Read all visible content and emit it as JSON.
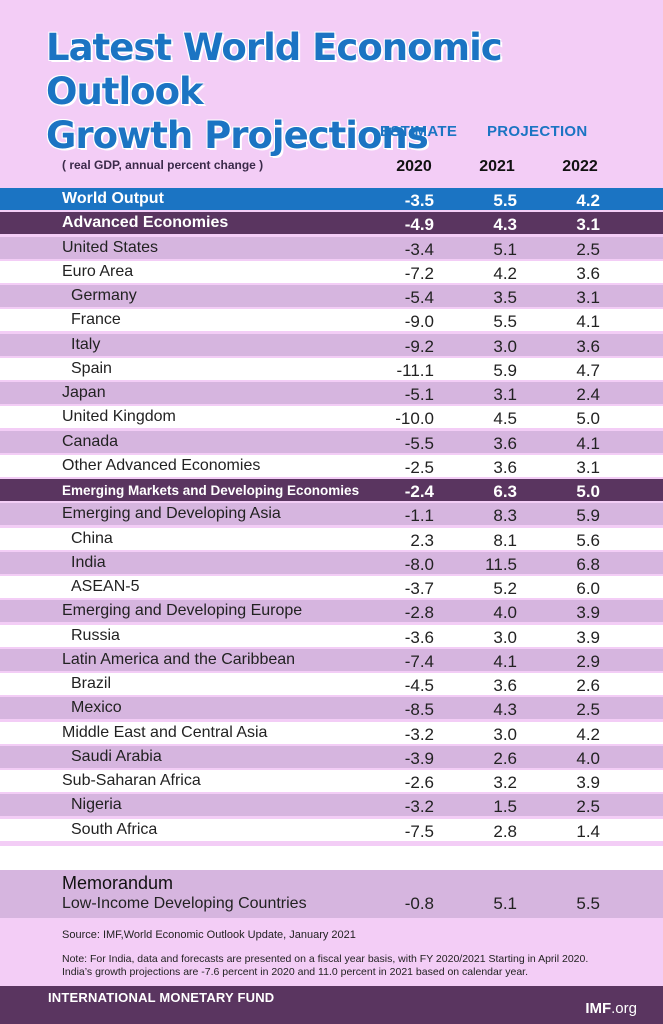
{
  "title_line1": "Latest World Economic Outlook",
  "title_line2": "Growth Projections",
  "header": {
    "estimate": "ESTIMATE",
    "projection": "PROJECTION",
    "unit_note": "( real GDP, annual percent change )",
    "years": [
      "2020",
      "2021",
      "2022"
    ]
  },
  "colors": {
    "background": "#f3cdf6",
    "title": "#1b74c3",
    "world_output_row": "#1b74c3",
    "group_row": "#5a3560",
    "stripe": "#d6b5df",
    "plain": "#ffffff",
    "footer": "#5a3560"
  },
  "chart_data": {
    "type": "table",
    "columns": [
      "",
      "2020",
      "2021",
      "2022"
    ],
    "rows": [
      {
        "label": "World Output",
        "style": "world",
        "indent": 0,
        "values": [
          "-3.5",
          "5.5",
          "4.2"
        ]
      },
      {
        "label": "Advanced Economies",
        "style": "group",
        "indent": 0,
        "values": [
          "-4.9",
          "4.3",
          "3.1"
        ]
      },
      {
        "label": "United States",
        "style": "stripe",
        "indent": 0,
        "values": [
          "-3.4",
          "5.1",
          "2.5"
        ]
      },
      {
        "label": "Euro Area",
        "style": "plain",
        "indent": 0,
        "values": [
          "-7.2",
          "4.2",
          "3.6"
        ]
      },
      {
        "label": "Germany",
        "style": "stripe",
        "indent": 1,
        "values": [
          "-5.4",
          "3.5",
          "3.1"
        ]
      },
      {
        "label": "France",
        "style": "plain",
        "indent": 1,
        "values": [
          "-9.0",
          "5.5",
          "4.1"
        ]
      },
      {
        "label": "Italy",
        "style": "stripe",
        "indent": 1,
        "values": [
          "-9.2",
          "3.0",
          "3.6"
        ]
      },
      {
        "label": "Spain",
        "style": "plain",
        "indent": 1,
        "values": [
          "-11.1",
          "5.9",
          "4.7"
        ]
      },
      {
        "label": "Japan",
        "style": "stripe",
        "indent": 0,
        "values": [
          "-5.1",
          "3.1",
          "2.4"
        ]
      },
      {
        "label": "United Kingdom",
        "style": "plain",
        "indent": 0,
        "values": [
          "-10.0",
          "4.5",
          "5.0"
        ]
      },
      {
        "label": "Canada",
        "style": "stripe",
        "indent": 0,
        "values": [
          "-5.5",
          "3.6",
          "4.1"
        ]
      },
      {
        "label": "Other Advanced Economies",
        "style": "plain",
        "indent": 0,
        "values": [
          "-2.5",
          "3.6",
          "3.1"
        ]
      },
      {
        "label": "Emerging Markets and Developing Economies",
        "style": "group",
        "indent": 0,
        "values": [
          "-2.4",
          "6.3",
          "5.0"
        ]
      },
      {
        "label": "Emerging and Developing Asia",
        "style": "stripe",
        "indent": 0,
        "values": [
          "-1.1",
          "8.3",
          "5.9"
        ]
      },
      {
        "label": "China",
        "style": "plain",
        "indent": 1,
        "values": [
          "2.3",
          "8.1",
          "5.6"
        ]
      },
      {
        "label": "India",
        "style": "stripe",
        "indent": 1,
        "values": [
          "-8.0",
          "11.5",
          "6.8"
        ]
      },
      {
        "label": "ASEAN-5",
        "style": "plain",
        "indent": 1,
        "values": [
          "-3.7",
          "5.2",
          "6.0"
        ]
      },
      {
        "label": "Emerging and Developing Europe",
        "style": "stripe",
        "indent": 0,
        "values": [
          "-2.8",
          "4.0",
          "3.9"
        ]
      },
      {
        "label": "Russia",
        "style": "plain",
        "indent": 1,
        "values": [
          "-3.6",
          "3.0",
          "3.9"
        ]
      },
      {
        "label": "Latin America and the Caribbean",
        "style": "stripe",
        "indent": 0,
        "values": [
          "-7.4",
          "4.1",
          "2.9"
        ]
      },
      {
        "label": "Brazil",
        "style": "plain",
        "indent": 1,
        "values": [
          "-4.5",
          "3.6",
          "2.6"
        ]
      },
      {
        "label": "Mexico",
        "style": "stripe",
        "indent": 1,
        "values": [
          "-8.5",
          "4.3",
          "2.5"
        ]
      },
      {
        "label": "Middle East and Central Asia",
        "style": "plain",
        "indent": 0,
        "values": [
          "-3.2",
          "3.0",
          "4.2"
        ]
      },
      {
        "label": "Saudi Arabia",
        "style": "stripe",
        "indent": 1,
        "values": [
          "-3.9",
          "2.6",
          "4.0"
        ]
      },
      {
        "label": "Sub-Saharan Africa",
        "style": "plain",
        "indent": 0,
        "values": [
          "-2.6",
          "3.2",
          "3.9"
        ]
      },
      {
        "label": "Nigeria",
        "style": "stripe",
        "indent": 1,
        "values": [
          "-3.2",
          "1.5",
          "2.5"
        ]
      },
      {
        "label": "South Africa",
        "style": "plain",
        "indent": 1,
        "values": [
          "-7.5",
          "2.8",
          "1.4"
        ]
      }
    ],
    "memorandum": {
      "heading": "Memorandum",
      "label": "Low-Income Developing Countries",
      "values": [
        "-0.8",
        "5.1",
        "5.5"
      ]
    }
  },
  "source": "Source: IMF,World Economic Outlook Update, January 2021",
  "note_line1": "Note: For India, data and forecasts are presented on a fiscal year basis, with FY 2020/2021 Starting in April 2020.",
  "note_line2": "India’s growth projections are -7.6 percent in 2020 and 11.0 percent in 2021 based on calendar year.",
  "footer": {
    "org": "INTERNATIONAL MONETARY FUND",
    "site_main": "IMF",
    "site_suffix": ".org"
  }
}
